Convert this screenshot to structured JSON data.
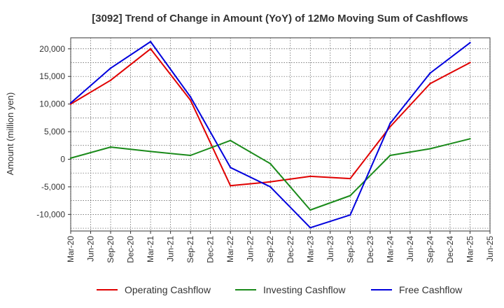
{
  "chart_data": {
    "type": "line",
    "title": "[3092]  Trend of Change in Amount (YoY) of 12Mo Moving Sum of Cashflows",
    "xlabel": "",
    "ylabel": "Amount (million yen)",
    "ylim": [
      -13000,
      22000
    ],
    "yticks": [
      -10000,
      -5000,
      0,
      5000,
      10000,
      15000,
      20000
    ],
    "ytick_labels": [
      "-10,000",
      "-5,000",
      "0",
      "5,000",
      "10,000",
      "15,000",
      "20,000"
    ],
    "categories": [
      "Mar-20",
      "Jun-20",
      "Sep-20",
      "Dec-20",
      "Mar-21",
      "Jun-21",
      "Sep-21",
      "Dec-21",
      "Mar-22",
      "Jun-22",
      "Sep-22",
      "Dec-22",
      "Mar-23",
      "Jun-23",
      "Sep-23",
      "Dec-23",
      "Mar-24",
      "Jun-24",
      "Sep-24",
      "Dec-24",
      "Mar-25",
      "Jun-25"
    ],
    "grid": true,
    "legend_position": "bottom",
    "series": [
      {
        "name": "Operating Cashflow",
        "color": "#e00000",
        "points": [
          {
            "x": "Mar-20",
            "y": 10000
          },
          {
            "x": "Sep-20",
            "y": 14300
          },
          {
            "x": "Mar-21",
            "y": 20000
          },
          {
            "x": "Sep-21",
            "y": 10700
          },
          {
            "x": "Mar-22",
            "y": -4800
          },
          {
            "x": "Sep-22",
            "y": -4100
          },
          {
            "x": "Mar-23",
            "y": -3100
          },
          {
            "x": "Sep-23",
            "y": -3500
          },
          {
            "x": "Mar-24",
            "y": 5900
          },
          {
            "x": "Sep-24",
            "y": 13700
          },
          {
            "x": "Mar-25",
            "y": 17500
          }
        ]
      },
      {
        "name": "Investing Cashflow",
        "color": "#1a8a1a",
        "points": [
          {
            "x": "Mar-20",
            "y": 200
          },
          {
            "x": "Sep-20",
            "y": 2200
          },
          {
            "x": "Mar-21",
            "y": 1400
          },
          {
            "x": "Sep-21",
            "y": 700
          },
          {
            "x": "Mar-22",
            "y": 3400
          },
          {
            "x": "Sep-22",
            "y": -800
          },
          {
            "x": "Mar-23",
            "y": -9200
          },
          {
            "x": "Sep-23",
            "y": -6600
          },
          {
            "x": "Mar-24",
            "y": 700
          },
          {
            "x": "Sep-24",
            "y": 1900
          },
          {
            "x": "Mar-25",
            "y": 3700
          }
        ]
      },
      {
        "name": "Free Cashflow",
        "color": "#0000dd",
        "points": [
          {
            "x": "Mar-20",
            "y": 10200
          },
          {
            "x": "Sep-20",
            "y": 16500
          },
          {
            "x": "Mar-21",
            "y": 21300
          },
          {
            "x": "Sep-21",
            "y": 11300
          },
          {
            "x": "Mar-22",
            "y": -1500
          },
          {
            "x": "Sep-22",
            "y": -5000
          },
          {
            "x": "Mar-23",
            "y": -12400
          },
          {
            "x": "Sep-23",
            "y": -10100
          },
          {
            "x": "Mar-24",
            "y": 6500
          },
          {
            "x": "Sep-24",
            "y": 15600
          },
          {
            "x": "Mar-25",
            "y": 21100
          }
        ]
      }
    ]
  }
}
